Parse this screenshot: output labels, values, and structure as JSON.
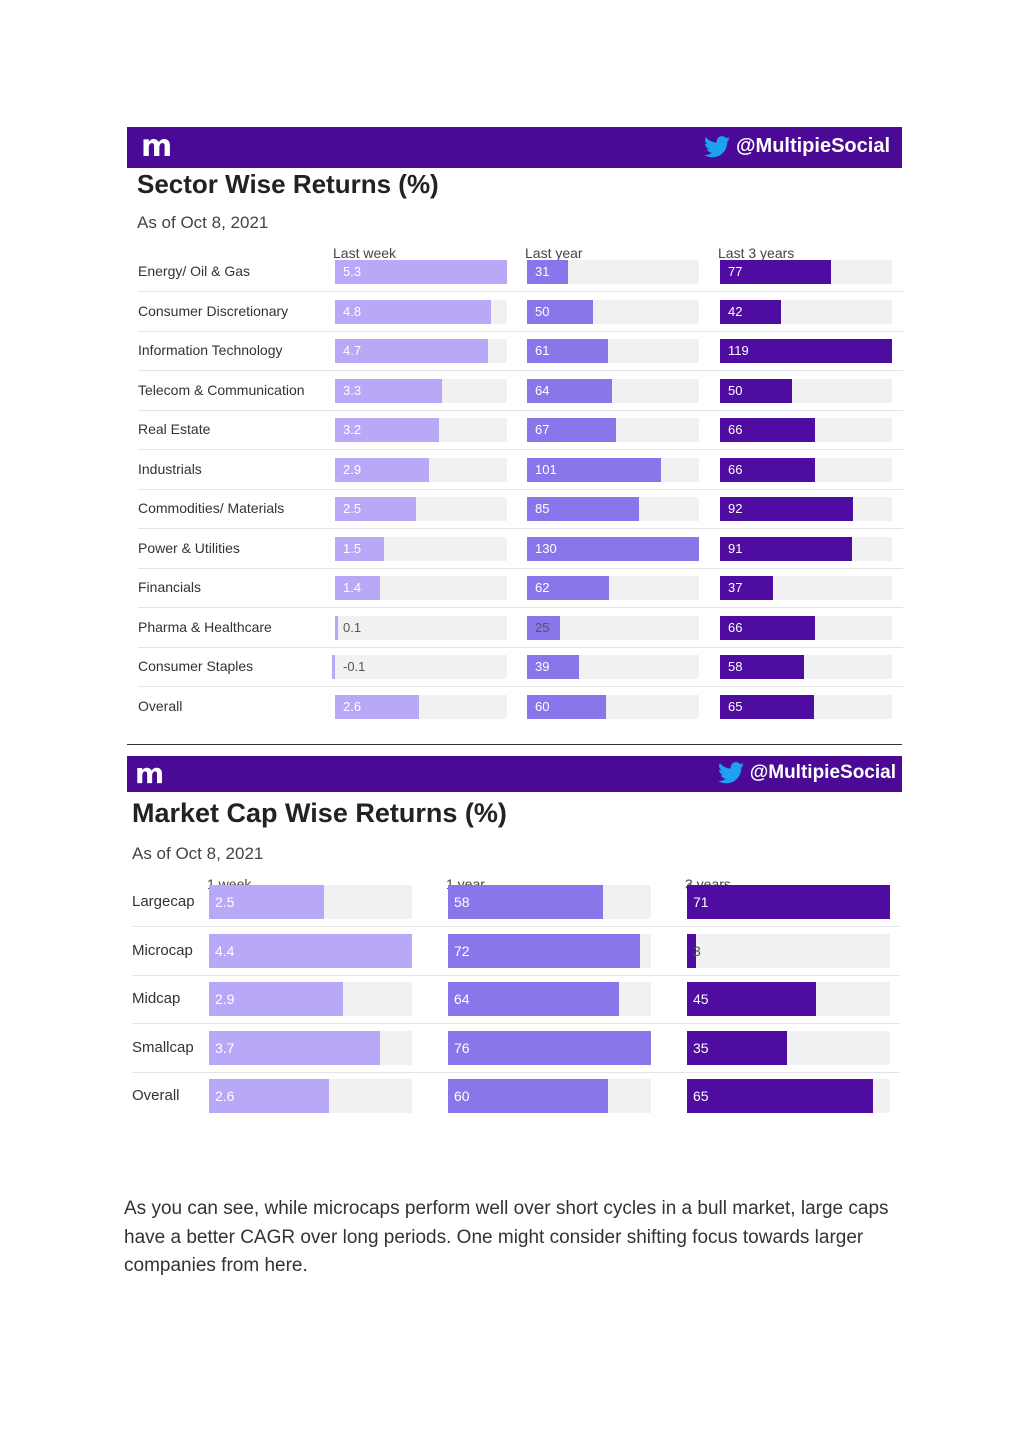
{
  "colors": {
    "banner": "#4b0a96",
    "col1": "#b9a7f7",
    "col2": "#8a76ea",
    "col3": "#4f0ca0",
    "track": "#f1f1f3"
  },
  "brand": {
    "logo": "m",
    "handle": "@MultipieSocial",
    "handle_icon": "twitter-bird-icon"
  },
  "chart_data": [
    {
      "type": "bar",
      "title": "Sector Wise Returns (%)",
      "subtitle": "As of Oct 8, 2021",
      "columns": [
        "Last week",
        "Last year",
        "Last 3 years"
      ],
      "categories": [
        "Energy/ Oil & Gas",
        "Consumer Discretionary",
        "Information Technology",
        "Telecom & Communication",
        "Real Estate",
        "Industrials",
        "Commodities/ Materials",
        "Power & Utilities",
        "Financials",
        "Pharma & Healthcare",
        "Consumer Staples",
        "Overall"
      ],
      "series": [
        {
          "name": "Last week",
          "values": [
            5.3,
            4.8,
            4.7,
            3.3,
            3.2,
            2.9,
            2.5,
            1.5,
            1.4,
            0.1,
            -0.1,
            2.6
          ],
          "labels": [
            "5.3",
            "4.8",
            "4.7",
            "3.3",
            "3.2",
            "2.9",
            "2.5",
            "1.5",
            "1.4",
            "0.1",
            "-0.1",
            "2.6"
          ],
          "max": 5.3
        },
        {
          "name": "Last year",
          "values": [
            31,
            50,
            61,
            64,
            67,
            101,
            85,
            130,
            62,
            25,
            39,
            60
          ],
          "labels": [
            "31",
            "50",
            "61",
            "64",
            "67",
            "101",
            "85",
            "130",
            "62",
            "25",
            "39",
            "60"
          ],
          "max": 130
        },
        {
          "name": "Last 3 years",
          "values": [
            77,
            42,
            119,
            50,
            66,
            66,
            92,
            91,
            37,
            66,
            58,
            65
          ],
          "labels": [
            "77",
            "42",
            "119",
            "50",
            "66",
            "66",
            "92",
            "91",
            "37",
            "66",
            "58",
            "65"
          ],
          "max": 119
        }
      ]
    },
    {
      "type": "bar",
      "title": "Market Cap Wise Returns (%)",
      "subtitle": "As of Oct 8, 2021",
      "columns": [
        "1 week",
        "1 year",
        "3 years"
      ],
      "categories": [
        "Largecap",
        "Microcap",
        "Midcap",
        "Smallcap",
        "Overall"
      ],
      "series": [
        {
          "name": "1 week",
          "values": [
            2.5,
            4.4,
            2.9,
            3.7,
            2.6
          ],
          "labels": [
            "2.5",
            "4.4",
            "2.9",
            "3.7",
            "2.6"
          ],
          "max": 4.4
        },
        {
          "name": "1 year",
          "values": [
            58,
            72,
            64,
            76,
            60
          ],
          "labels": [
            "58",
            "72",
            "64",
            "76",
            "60"
          ],
          "max": 76
        },
        {
          "name": "3 years",
          "values": [
            71,
            3,
            45,
            35,
            65
          ],
          "labels": [
            "71",
            "3",
            "45",
            "35",
            "65"
          ],
          "max": 71
        }
      ]
    }
  ],
  "paragraph": "As you can see, while microcaps perform well over short cycles in a bull market, large caps have a better CAGR over long periods. One might consider shifting focus towards larger companies from here."
}
